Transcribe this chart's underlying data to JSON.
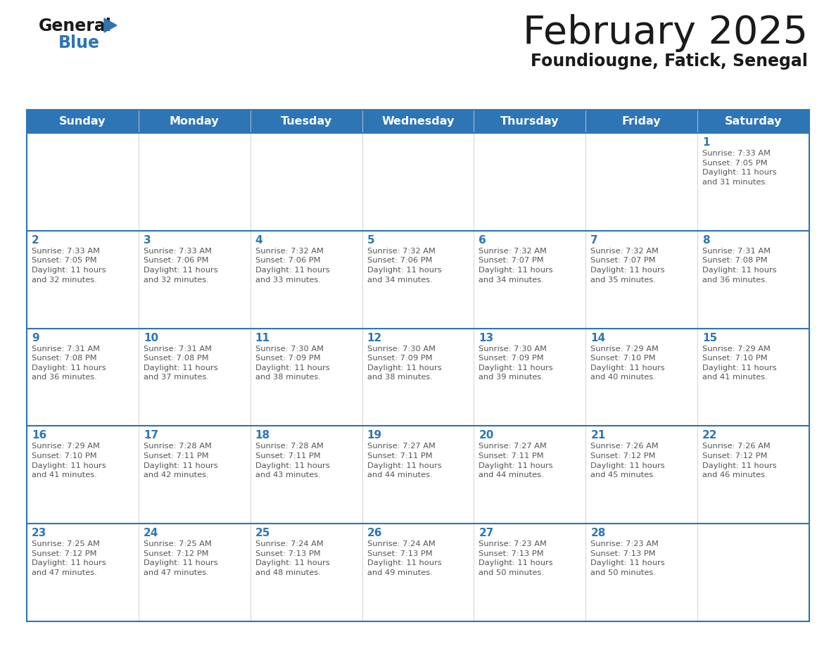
{
  "title": "February 2025",
  "subtitle": "Foundiougne, Fatick, Senegal",
  "header_color": "#2e75b6",
  "header_text_color": "#ffffff",
  "day_names": [
    "Sunday",
    "Monday",
    "Tuesday",
    "Wednesday",
    "Thursday",
    "Friday",
    "Saturday"
  ],
  "border_color": "#2e75b6",
  "day_number_color": "#2e75b6",
  "info_text_color": "#555555",
  "title_color": "#1a1a1a",
  "subtitle_color": "#1a1a1a",
  "logo_color_general": "#1a1a1a",
  "logo_color_blue": "#2e75b6",
  "logo_triangle_color": "#2e75b6",
  "calendar": [
    [
      null,
      null,
      null,
      null,
      null,
      null,
      {
        "day": 1,
        "sunrise": "7:33 AM",
        "sunset": "7:05 PM",
        "daylight": "11 hours and 31 minutes."
      }
    ],
    [
      {
        "day": 2,
        "sunrise": "7:33 AM",
        "sunset": "7:05 PM",
        "daylight": "11 hours and 32 minutes."
      },
      {
        "day": 3,
        "sunrise": "7:33 AM",
        "sunset": "7:06 PM",
        "daylight": "11 hours and 32 minutes."
      },
      {
        "day": 4,
        "sunrise": "7:32 AM",
        "sunset": "7:06 PM",
        "daylight": "11 hours and 33 minutes."
      },
      {
        "day": 5,
        "sunrise": "7:32 AM",
        "sunset": "7:06 PM",
        "daylight": "11 hours and 34 minutes."
      },
      {
        "day": 6,
        "sunrise": "7:32 AM",
        "sunset": "7:07 PM",
        "daylight": "11 hours and 34 minutes."
      },
      {
        "day": 7,
        "sunrise": "7:32 AM",
        "sunset": "7:07 PM",
        "daylight": "11 hours and 35 minutes."
      },
      {
        "day": 8,
        "sunrise": "7:31 AM",
        "sunset": "7:08 PM",
        "daylight": "11 hours and 36 minutes."
      }
    ],
    [
      {
        "day": 9,
        "sunrise": "7:31 AM",
        "sunset": "7:08 PM",
        "daylight": "11 hours and 36 minutes."
      },
      {
        "day": 10,
        "sunrise": "7:31 AM",
        "sunset": "7:08 PM",
        "daylight": "11 hours and 37 minutes."
      },
      {
        "day": 11,
        "sunrise": "7:30 AM",
        "sunset": "7:09 PM",
        "daylight": "11 hours and 38 minutes."
      },
      {
        "day": 12,
        "sunrise": "7:30 AM",
        "sunset": "7:09 PM",
        "daylight": "11 hours and 38 minutes."
      },
      {
        "day": 13,
        "sunrise": "7:30 AM",
        "sunset": "7:09 PM",
        "daylight": "11 hours and 39 minutes."
      },
      {
        "day": 14,
        "sunrise": "7:29 AM",
        "sunset": "7:10 PM",
        "daylight": "11 hours and 40 minutes."
      },
      {
        "day": 15,
        "sunrise": "7:29 AM",
        "sunset": "7:10 PM",
        "daylight": "11 hours and 41 minutes."
      }
    ],
    [
      {
        "day": 16,
        "sunrise": "7:29 AM",
        "sunset": "7:10 PM",
        "daylight": "11 hours and 41 minutes."
      },
      {
        "day": 17,
        "sunrise": "7:28 AM",
        "sunset": "7:11 PM",
        "daylight": "11 hours and 42 minutes."
      },
      {
        "day": 18,
        "sunrise": "7:28 AM",
        "sunset": "7:11 PM",
        "daylight": "11 hours and 43 minutes."
      },
      {
        "day": 19,
        "sunrise": "7:27 AM",
        "sunset": "7:11 PM",
        "daylight": "11 hours and 44 minutes."
      },
      {
        "day": 20,
        "sunrise": "7:27 AM",
        "sunset": "7:11 PM",
        "daylight": "11 hours and 44 minutes."
      },
      {
        "day": 21,
        "sunrise": "7:26 AM",
        "sunset": "7:12 PM",
        "daylight": "11 hours and 45 minutes."
      },
      {
        "day": 22,
        "sunrise": "7:26 AM",
        "sunset": "7:12 PM",
        "daylight": "11 hours and 46 minutes."
      }
    ],
    [
      {
        "day": 23,
        "sunrise": "7:25 AM",
        "sunset": "7:12 PM",
        "daylight": "11 hours and 47 minutes."
      },
      {
        "day": 24,
        "sunrise": "7:25 AM",
        "sunset": "7:12 PM",
        "daylight": "11 hours and 47 minutes."
      },
      {
        "day": 25,
        "sunrise": "7:24 AM",
        "sunset": "7:13 PM",
        "daylight": "11 hours and 48 minutes."
      },
      {
        "day": 26,
        "sunrise": "7:24 AM",
        "sunset": "7:13 PM",
        "daylight": "11 hours and 49 minutes."
      },
      {
        "day": 27,
        "sunrise": "7:23 AM",
        "sunset": "7:13 PM",
        "daylight": "11 hours and 50 minutes."
      },
      {
        "day": 28,
        "sunrise": "7:23 AM",
        "sunset": "7:13 PM",
        "daylight": "11 hours and 50 minutes."
      },
      null
    ]
  ]
}
